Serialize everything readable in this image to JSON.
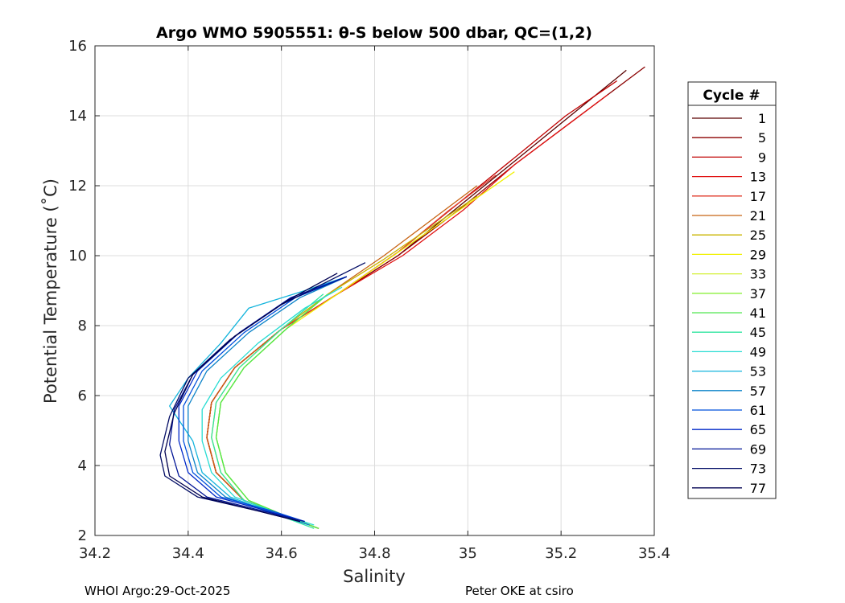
{
  "chart_data": {
    "type": "line",
    "title": "Argo WMO 5905551: θ-S below 500 dbar,  QC=(1,2)",
    "xlabel": "Salinity",
    "ylabel": "Potential Temperature (˚C)",
    "xlim": [
      34.2,
      35.4
    ],
    "ylim": [
      2,
      16
    ],
    "xticks": [
      "34.2",
      "34.4",
      "34.6",
      "34.8",
      "35",
      "35.2",
      "35.4"
    ],
    "yticks": [
      "2",
      "4",
      "6",
      "8",
      "10",
      "12",
      "14",
      "16"
    ],
    "grid": true,
    "legend": {
      "title": "Cycle #",
      "placement": "right-outside",
      "entries": [
        {
          "label": "1",
          "color": "#5a0000"
        },
        {
          "label": "5",
          "color": "#8b0000"
        },
        {
          "label": "9",
          "color": "#c00000"
        },
        {
          "label": "13",
          "color": "#e01010"
        },
        {
          "label": "17",
          "color": "#e03a2a"
        },
        {
          "label": "21",
          "color": "#c86414"
        },
        {
          "label": "25",
          "color": "#c8b400"
        },
        {
          "label": "29",
          "color": "#f0f000"
        },
        {
          "label": "33",
          "color": "#d2f032"
        },
        {
          "label": "37",
          "color": "#8cf03c"
        },
        {
          "label": "41",
          "color": "#50e650"
        },
        {
          "label": "45",
          "color": "#32e6a0"
        },
        {
          "label": "49",
          "color": "#28dcd2"
        },
        {
          "label": "53",
          "color": "#14b4dc"
        },
        {
          "label": "57",
          "color": "#0a82c8"
        },
        {
          "label": "61",
          "color": "#0050dc"
        },
        {
          "label": "65",
          "color": "#0028c8"
        },
        {
          "label": "69",
          "color": "#001496"
        },
        {
          "label": "73",
          "color": "#000a64"
        },
        {
          "label": "77",
          "color": "#000050"
        }
      ]
    },
    "series": [
      {
        "color": "#5a0000",
        "x": [
          34.68,
          34.62,
          34.52,
          34.46,
          34.44,
          34.45,
          34.5,
          34.6,
          34.72,
          34.85,
          34.98,
          35.1,
          35.22,
          35.34
        ],
        "y": [
          2.2,
          2.5,
          3.0,
          3.8,
          4.8,
          5.8,
          6.8,
          7.9,
          8.9,
          10.0,
          11.4,
          12.7,
          14.0,
          15.3
        ]
      },
      {
        "color": "#8b0000",
        "x": [
          34.68,
          34.62,
          34.52,
          34.46,
          34.44,
          34.45,
          34.5,
          34.6,
          34.72,
          34.85,
          34.98,
          35.1,
          35.24,
          35.38
        ],
        "y": [
          2.2,
          2.5,
          3.0,
          3.8,
          4.8,
          5.8,
          6.8,
          7.9,
          8.9,
          10.0,
          11.3,
          12.6,
          14.0,
          15.4
        ]
      },
      {
        "color": "#c00000",
        "x": [
          34.68,
          34.62,
          34.52,
          34.46,
          34.44,
          34.45,
          34.5,
          34.6,
          34.72,
          34.85,
          34.98,
          35.1,
          35.21,
          35.32
        ],
        "y": [
          2.2,
          2.5,
          3.0,
          3.8,
          4.8,
          5.8,
          6.8,
          7.9,
          8.9,
          10.1,
          11.5,
          12.8,
          14.0,
          15.0
        ]
      },
      {
        "color": "#e01010",
        "x": [
          34.68,
          34.62,
          34.52,
          34.46,
          34.44,
          34.45,
          34.5,
          34.6,
          34.72,
          34.86,
          34.99,
          35.1,
          35.22,
          35.3
        ],
        "y": [
          2.2,
          2.5,
          3.0,
          3.8,
          4.8,
          5.8,
          6.8,
          7.9,
          8.9,
          10.0,
          11.3,
          12.6,
          13.8,
          14.6
        ]
      },
      {
        "color": "#e03a2a",
        "x": [
          34.68,
          34.62,
          34.52,
          34.46,
          34.44,
          34.45,
          34.5,
          34.6,
          34.72,
          34.85,
          34.96,
          35.06
        ],
        "y": [
          2.2,
          2.5,
          3.0,
          3.8,
          4.8,
          5.8,
          6.8,
          7.9,
          8.9,
          10.1,
          11.3,
          12.3
        ]
      },
      {
        "color": "#c86414",
        "x": [
          34.68,
          34.62,
          34.52,
          34.46,
          34.44,
          34.45,
          34.5,
          34.6,
          34.7,
          34.82,
          34.93,
          35.02
        ],
        "y": [
          2.2,
          2.5,
          3.0,
          3.8,
          4.8,
          5.8,
          6.8,
          7.9,
          8.9,
          10.0,
          11.1,
          12.0
        ]
      },
      {
        "color": "#c8b400",
        "x": [
          34.68,
          34.62,
          34.52,
          34.47,
          34.45,
          34.46,
          34.51,
          34.6,
          34.7,
          34.82,
          34.93,
          35.02
        ],
        "y": [
          2.2,
          2.5,
          3.0,
          3.8,
          4.8,
          5.8,
          6.8,
          7.9,
          8.9,
          9.9,
          10.9,
          11.7
        ]
      },
      {
        "color": "#f0f000",
        "x": [
          34.68,
          34.62,
          34.53,
          34.48,
          34.46,
          34.47,
          34.52,
          34.61,
          34.72,
          34.84,
          34.96,
          35.1
        ],
        "y": [
          2.2,
          2.5,
          3.0,
          3.8,
          4.8,
          5.8,
          6.8,
          7.9,
          8.9,
          10.0,
          11.1,
          12.4
        ]
      },
      {
        "color": "#d2f032",
        "x": [
          34.68,
          34.62,
          34.53,
          34.48,
          34.46,
          34.47,
          34.52,
          34.61,
          34.7
        ],
        "y": [
          2.2,
          2.5,
          3.0,
          3.8,
          4.8,
          5.8,
          6.8,
          7.9,
          8.9
        ]
      },
      {
        "color": "#8cf03c",
        "x": [
          34.68,
          34.62,
          34.53,
          34.48,
          34.46,
          34.47,
          34.52,
          34.61,
          34.7
        ],
        "y": [
          2.2,
          2.5,
          3.0,
          3.8,
          4.8,
          5.8,
          6.8,
          7.9,
          8.9
        ]
      },
      {
        "color": "#50e650",
        "x": [
          34.68,
          34.62,
          34.53,
          34.48,
          34.46,
          34.47,
          34.52,
          34.61,
          34.7
        ],
        "y": [
          2.2,
          2.5,
          3.0,
          3.8,
          4.8,
          5.8,
          6.8,
          7.9,
          8.9
        ]
      },
      {
        "color": "#32e6a0",
        "x": [
          34.67,
          34.61,
          34.52,
          34.47,
          34.45,
          34.46,
          34.51,
          34.6,
          34.69
        ],
        "y": [
          2.2,
          2.5,
          3.0,
          3.8,
          4.8,
          5.8,
          6.8,
          7.9,
          8.9
        ]
      },
      {
        "color": "#28dcd2",
        "x": [
          34.67,
          34.6,
          34.5,
          34.45,
          34.43,
          34.43,
          34.47,
          34.55,
          34.65,
          34.73
        ],
        "y": [
          2.3,
          2.6,
          3.1,
          3.8,
          4.7,
          5.6,
          6.5,
          7.5,
          8.5,
          9.1
        ]
      },
      {
        "color": "#14b4dc",
        "x": [
          34.66,
          34.59,
          34.49,
          34.43,
          34.41,
          34.36,
          34.4,
          34.47,
          34.53,
          34.65,
          34.74
        ],
        "y": [
          2.3,
          2.6,
          3.1,
          3.8,
          4.7,
          5.7,
          6.5,
          7.5,
          8.5,
          9.0,
          9.4
        ]
      },
      {
        "color": "#0a82c8",
        "x": [
          34.66,
          34.59,
          34.48,
          34.42,
          34.4,
          34.4,
          34.44,
          34.53,
          34.64,
          34.74
        ],
        "y": [
          2.3,
          2.6,
          3.1,
          3.8,
          4.7,
          5.7,
          6.7,
          7.8,
          8.8,
          9.4
        ]
      },
      {
        "color": "#0050dc",
        "x": [
          34.65,
          34.58,
          34.47,
          34.41,
          34.39,
          34.39,
          34.43,
          34.52,
          34.63,
          34.74
        ],
        "y": [
          2.4,
          2.7,
          3.1,
          3.8,
          4.7,
          5.7,
          6.7,
          7.8,
          8.8,
          9.4
        ]
      },
      {
        "color": "#0028c8",
        "x": [
          34.65,
          34.57,
          34.46,
          34.4,
          34.38,
          34.38,
          34.42,
          34.51,
          34.62,
          34.74
        ],
        "y": [
          2.4,
          2.7,
          3.1,
          3.8,
          4.7,
          5.7,
          6.7,
          7.8,
          8.8,
          9.4
        ]
      },
      {
        "color": "#001496",
        "x": [
          34.65,
          34.56,
          34.44,
          34.38,
          34.36,
          34.37,
          34.41,
          34.5,
          34.61,
          34.74
        ],
        "y": [
          2.4,
          2.7,
          3.1,
          3.7,
          4.6,
          5.6,
          6.6,
          7.7,
          8.7,
          9.4
        ]
      },
      {
        "color": "#000a64",
        "x": [
          34.64,
          34.55,
          34.42,
          34.35,
          34.34,
          34.36,
          34.4,
          34.49,
          34.6,
          34.72,
          34.78
        ],
        "y": [
          2.4,
          2.7,
          3.1,
          3.7,
          4.3,
          5.4,
          6.5,
          7.6,
          8.6,
          9.4,
          9.8
        ]
      },
      {
        "color": "#000050",
        "x": [
          34.64,
          34.55,
          34.43,
          34.36,
          34.35,
          34.37,
          34.41,
          34.5,
          34.61,
          34.72
        ],
        "y": [
          2.4,
          2.7,
          3.1,
          3.7,
          4.4,
          5.5,
          6.6,
          7.7,
          8.7,
          9.5
        ]
      }
    ]
  },
  "footer": {
    "left": "WHOI Argo:29-Oct-2025",
    "right": "Peter OKE at csiro"
  }
}
